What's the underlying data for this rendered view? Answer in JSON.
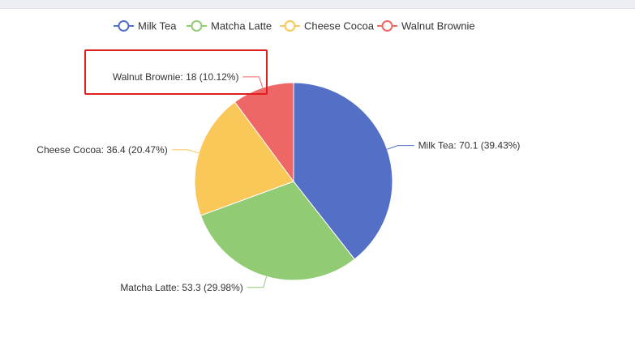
{
  "chart_data": {
    "type": "pie",
    "slices": [
      {
        "name": "Milk Tea",
        "value": 70.1,
        "percent": "39.43%",
        "color": "#5470c6",
        "label": "Milk Tea: 70.1 (39.43%)"
      },
      {
        "name": "Matcha Latte",
        "value": 53.3,
        "percent": "29.98%",
        "color": "#91cc75",
        "label": "Matcha Latte: 53.3 (29.98%)"
      },
      {
        "name": "Cheese Cocoa",
        "value": 36.4,
        "percent": "20.47%",
        "color": "#fac858",
        "label": "Cheese Cocoa: 36.4 (20.47%)"
      },
      {
        "name": "Walnut Brownie",
        "value": 18,
        "percent": "10.12%",
        "color": "#ee6666",
        "label": "Walnut Brownie: 18 (10.12%)"
      }
    ],
    "legend": {
      "position": "top-center"
    },
    "highlighted": "Walnut Brownie"
  }
}
